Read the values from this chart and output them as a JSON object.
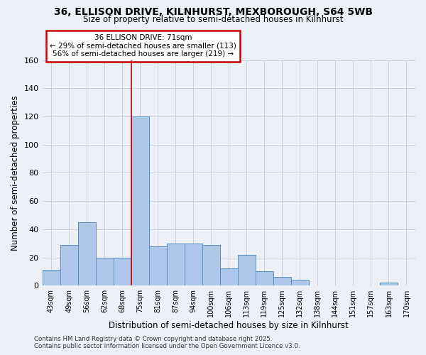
{
  "title": "36, ELLISON DRIVE, KILNHURST, MEXBOROUGH, S64 5WB",
  "subtitle": "Size of property relative to semi-detached houses in Kilnhurst",
  "xlabel": "Distribution of semi-detached houses by size in Kilnhurst",
  "ylabel": "Number of semi-detached properties",
  "categories": [
    "43sqm",
    "49sqm",
    "56sqm",
    "62sqm",
    "68sqm",
    "75sqm",
    "81sqm",
    "87sqm",
    "94sqm",
    "100sqm",
    "106sqm",
    "113sqm",
    "119sqm",
    "125sqm",
    "132sqm",
    "138sqm",
    "144sqm",
    "151sqm",
    "157sqm",
    "163sqm",
    "170sqm"
  ],
  "values": [
    11,
    29,
    45,
    20,
    20,
    120,
    28,
    30,
    30,
    29,
    12,
    22,
    10,
    6,
    4,
    0,
    0,
    0,
    0,
    2,
    0
  ],
  "bar_color": "#aec6e8",
  "bar_edge_color": "#5a8fc0",
  "grid_color": "#c8d0e0",
  "background_color": "#eef0f8",
  "red_line_x": 4.5,
  "annotation_text": "36 ELLISON DRIVE: 71sqm\n← 29% of semi-detached houses are smaller (113)\n56% of semi-detached houses are larger (219) →",
  "annotation_box_color": "#ffffff",
  "annotation_box_edge": "#cc0000",
  "footer_text": "Contains HM Land Registry data © Crown copyright and database right 2025.\nContains public sector information licensed under the Open Government Licence v3.0.",
  "ylim": [
    0,
    160
  ],
  "yticks": [
    0,
    20,
    40,
    60,
    80,
    100,
    120,
    140,
    160
  ]
}
